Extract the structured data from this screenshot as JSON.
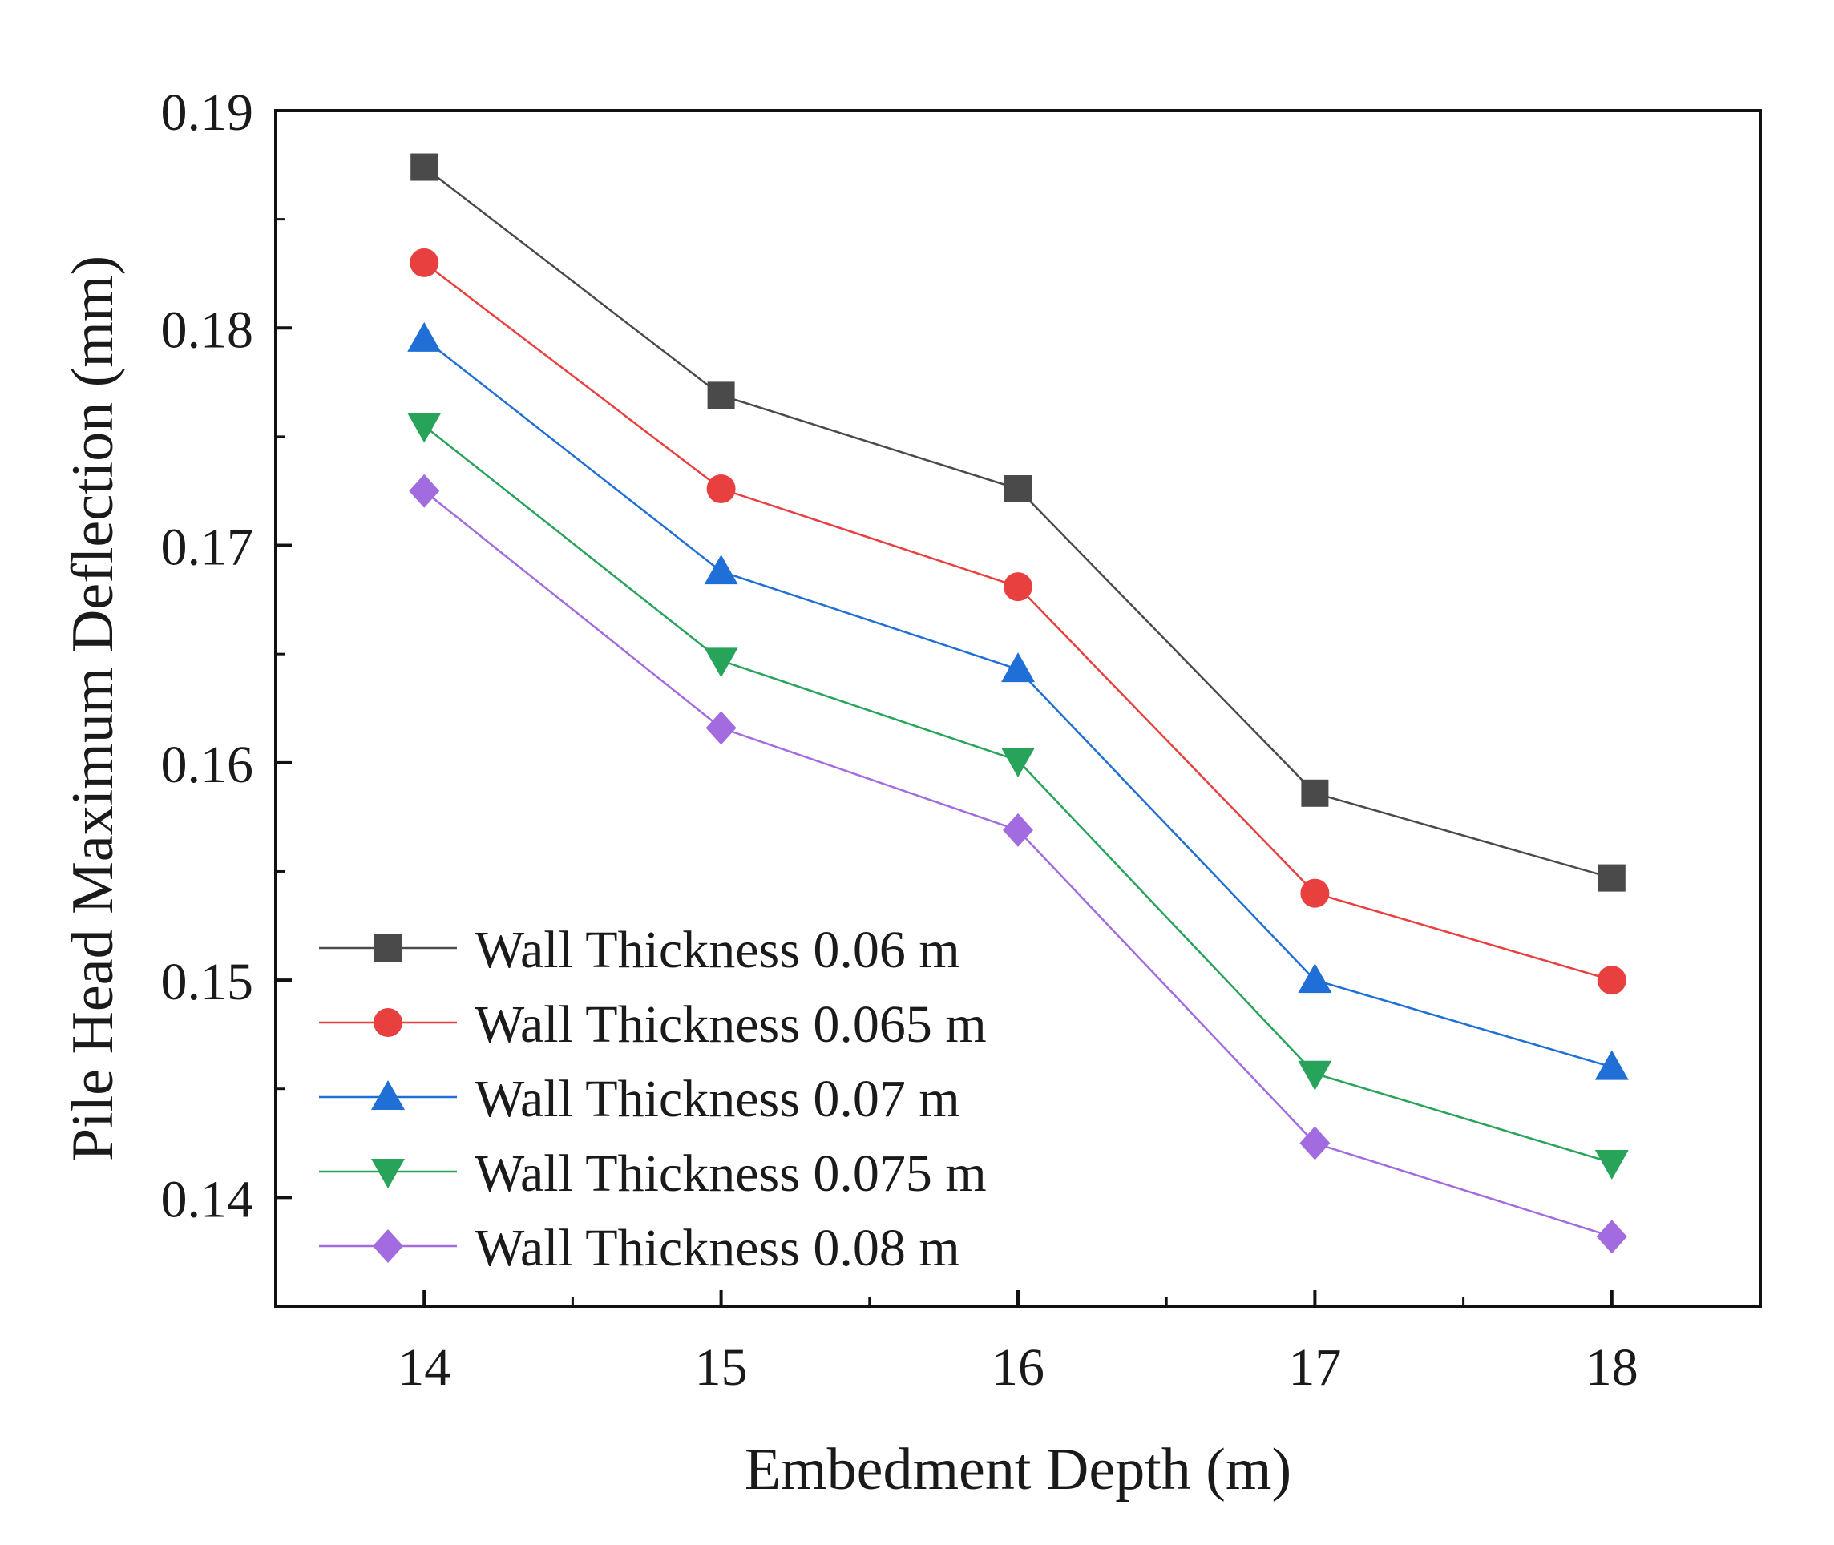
{
  "chart_data": {
    "type": "line",
    "title": "",
    "xlabel": "Embedment Depth (m)",
    "ylabel": "Pile Head Maximum Deflection (mm)",
    "x": [
      14,
      15,
      16,
      17,
      18
    ],
    "xlim": [
      13.5,
      18.5
    ],
    "ylim": [
      0.135,
      0.19
    ],
    "xticks": [
      14,
      15,
      16,
      17,
      18
    ],
    "xtick_labels": [
      "14",
      "15",
      "16",
      "17",
      "18"
    ],
    "yticks": [
      0.14,
      0.15,
      0.16,
      0.17,
      0.18,
      0.19
    ],
    "ytick_labels": [
      "0.14",
      "0.15",
      "0.16",
      "0.17",
      "0.18",
      "0.19"
    ],
    "grid": false,
    "legend_position": "bottom-left",
    "series": [
      {
        "name": "Wall Thickness 0.06 m",
        "color": "#4a4a4a",
        "marker": "square",
        "values": [
          0.1874,
          0.1769,
          0.1726,
          0.1586,
          0.1547
        ]
      },
      {
        "name": "Wall Thickness 0.065 m",
        "color": "#e8403f",
        "marker": "circle",
        "values": [
          0.183,
          0.1726,
          0.1681,
          0.154,
          0.15
        ]
      },
      {
        "name": "Wall Thickness 0.07 m",
        "color": "#1f6fd6",
        "marker": "triangle-up",
        "values": [
          0.1795,
          0.1688,
          0.1643,
          0.15,
          0.146
        ]
      },
      {
        "name": "Wall Thickness 0.075 m",
        "color": "#27a35a",
        "marker": "triangle-down",
        "values": [
          0.1755,
          0.1647,
          0.1601,
          0.1457,
          0.1416
        ]
      },
      {
        "name": "Wall Thickness 0.08 m",
        "color": "#a26be0",
        "marker": "diamond",
        "values": [
          0.1725,
          0.1616,
          0.1569,
          0.1425,
          0.1382
        ]
      }
    ]
  }
}
